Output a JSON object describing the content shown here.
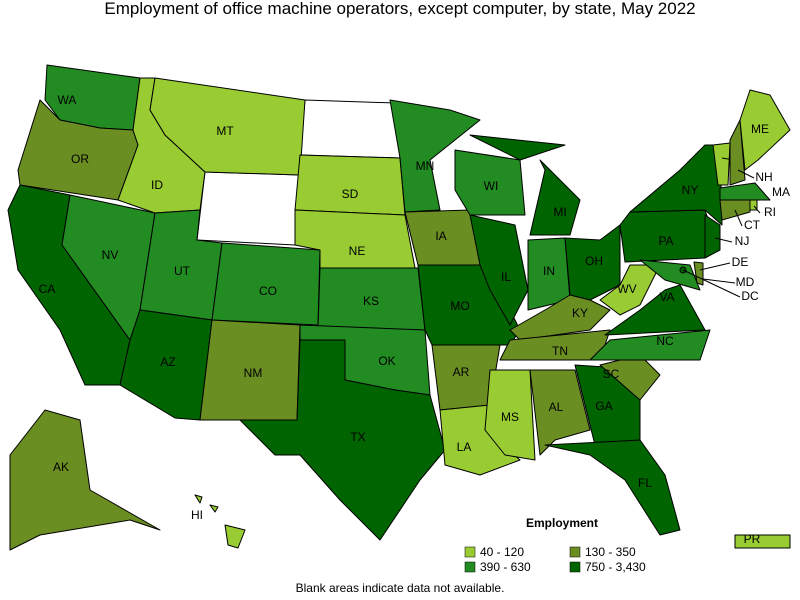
{
  "title": "Employment of office machine operators, except computer, by state, May 2022",
  "legend": {
    "title": "Employment",
    "classes": [
      {
        "label": "40 - 120",
        "color": "#99cc33"
      },
      {
        "label": "130 - 350",
        "color": "#6b8e23"
      },
      {
        "label": "390 - 630",
        "color": "#228b22"
      },
      {
        "label": "750 - 3,430",
        "color": "#006400"
      }
    ]
  },
  "states": [
    {
      "abbr": "WA",
      "class": 2
    },
    {
      "abbr": "OR",
      "class": 1
    },
    {
      "abbr": "CA",
      "class": 3
    },
    {
      "abbr": "NV",
      "class": 2
    },
    {
      "abbr": "ID",
      "class": 0
    },
    {
      "abbr": "MT",
      "class": 0
    },
    {
      "abbr": "UT",
      "class": 2
    },
    {
      "abbr": "CO",
      "class": 2
    },
    {
      "abbr": "AZ",
      "class": 3
    },
    {
      "abbr": "NM",
      "class": 1
    },
    {
      "abbr": "SD",
      "class": 0
    },
    {
      "abbr": "NE",
      "class": 0
    },
    {
      "abbr": "KS",
      "class": 2
    },
    {
      "abbr": "OK",
      "class": 2
    },
    {
      "abbr": "TX",
      "class": 3
    },
    {
      "abbr": "MN",
      "class": 2
    },
    {
      "abbr": "IA",
      "class": 1
    },
    {
      "abbr": "MO",
      "class": 3
    },
    {
      "abbr": "AR",
      "class": 1
    },
    {
      "abbr": "LA",
      "class": 0
    },
    {
      "abbr": "WI",
      "class": 2
    },
    {
      "abbr": "IL",
      "class": 3
    },
    {
      "abbr": "MI",
      "class": 3
    },
    {
      "abbr": "IN",
      "class": 2
    },
    {
      "abbr": "OH",
      "class": 3
    },
    {
      "abbr": "KY",
      "class": 1
    },
    {
      "abbr": "TN",
      "class": 1
    },
    {
      "abbr": "MS",
      "class": 0
    },
    {
      "abbr": "AL",
      "class": 1
    },
    {
      "abbr": "GA",
      "class": 3
    },
    {
      "abbr": "FL",
      "class": 3
    },
    {
      "abbr": "SC",
      "class": 1
    },
    {
      "abbr": "NC",
      "class": 2
    },
    {
      "abbr": "VA",
      "class": 3
    },
    {
      "abbr": "WV",
      "class": 0
    },
    {
      "abbr": "PA",
      "class": 3
    },
    {
      "abbr": "NY",
      "class": 3
    },
    {
      "abbr": "NJ",
      "class": 3
    },
    {
      "abbr": "MD",
      "class": 2
    },
    {
      "abbr": "DE",
      "class": 1
    },
    {
      "abbr": "DC",
      "class": 3
    },
    {
      "abbr": "VT",
      "class": 0
    },
    {
      "abbr": "NH",
      "class": 1
    },
    {
      "abbr": "ME",
      "class": 0
    },
    {
      "abbr": "MA",
      "class": 2
    },
    {
      "abbr": "RI",
      "class": 0
    },
    {
      "abbr": "CT",
      "class": 1
    },
    {
      "abbr": "AK",
      "class": 1
    },
    {
      "abbr": "HI",
      "class": 0
    },
    {
      "abbr": "PR",
      "class": 0
    }
  ],
  "footnote": "Blank areas indicate data not available."
}
